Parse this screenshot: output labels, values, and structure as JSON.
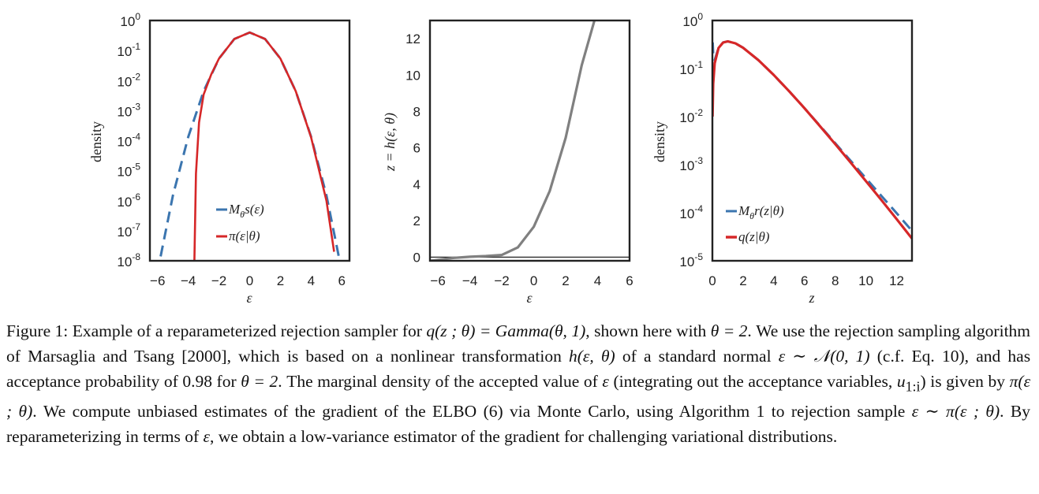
{
  "chart_data": [
    {
      "type": "line",
      "xlabel": "ε",
      "ylabel": "density",
      "xticks": [
        "−6",
        "−4",
        "−2",
        "0",
        "2",
        "4",
        "6"
      ],
      "xlim": [
        -6.5,
        6.5
      ],
      "ylim": [
        1e-08,
        1
      ],
      "yscale": "log",
      "yticks": [
        {
          "base": "10",
          "exp": "0"
        },
        {
          "base": "10",
          "exp": "-1"
        },
        {
          "base": "10",
          "exp": "-2"
        },
        {
          "base": "10",
          "exp": "-3"
        },
        {
          "base": "10",
          "exp": "-4"
        },
        {
          "base": "10",
          "exp": "-5"
        },
        {
          "base": "10",
          "exp": "-6"
        },
        {
          "base": "10",
          "exp": "-7"
        },
        {
          "base": "10",
          "exp": "-8"
        }
      ],
      "legend_position": "lower-center",
      "series": [
        {
          "name": "M_θ s(ε)",
          "label": "M",
          "label_sub": "θ",
          "label_rest": "s(ε)",
          "style": "dashed",
          "color": "#3b75af",
          "x": [
            -5.8,
            -5,
            -4,
            -3,
            -2,
            -1,
            0,
            1,
            2,
            3,
            4,
            5,
            5.8
          ],
          "y": [
            1.4e-08,
            1.5e-06,
            0.000135,
            0.0044,
            0.054,
            0.242,
            0.399,
            0.242,
            0.054,
            0.0044,
            0.000135,
            1.5e-06,
            1.4e-08
          ]
        },
        {
          "name": "π(ε|θ)",
          "label": "π(ε|θ)",
          "style": "solid",
          "color": "#d62728",
          "x": [
            -3.6,
            -3.5,
            -3.3,
            -3,
            -2.5,
            -2,
            -1,
            0,
            1,
            2,
            3,
            4,
            5,
            5.5
          ],
          "y": [
            1e-08,
            8e-06,
            0.0004,
            0.0034,
            0.0162,
            0.054,
            0.242,
            0.399,
            0.242,
            0.054,
            0.0044,
            0.00013,
            1e-06,
            2e-08
          ]
        }
      ]
    },
    {
      "type": "line",
      "xlabel": "ε",
      "ylabel": "z = h(ε, θ)",
      "xticks": [
        "−6",
        "−4",
        "−2",
        "0",
        "2",
        "4",
        "6"
      ],
      "yticks": [
        "0",
        "2",
        "4",
        "6",
        "8",
        "10",
        "12"
      ],
      "xlim": [
        -6.5,
        6
      ],
      "ylim": [
        -0.2,
        13
      ],
      "hline": 0,
      "series": [
        {
          "name": "h",
          "style": "solid",
          "color": "#808080",
          "x": [
            -6.5,
            -5,
            -4,
            -3,
            -2,
            -1,
            0,
            1,
            2,
            3,
            3.8
          ],
          "y": [
            -0.2,
            -0.04,
            0.02,
            0.06,
            0.12,
            0.53,
            1.67,
            3.63,
            6.55,
            10.53,
            13.0
          ]
        }
      ]
    },
    {
      "type": "line",
      "xlabel": "z",
      "ylabel": "density",
      "xticks": [
        "0",
        "2",
        "4",
        "6",
        "8",
        "10",
        "12"
      ],
      "xlim": [
        0,
        13
      ],
      "ylim": [
        1e-05,
        1
      ],
      "yscale": "log",
      "yticks": [
        {
          "base": "10",
          "exp": "0"
        },
        {
          "base": "10",
          "exp": "-1"
        },
        {
          "base": "10",
          "exp": "-2"
        },
        {
          "base": "10",
          "exp": "-3"
        },
        {
          "base": "10",
          "exp": "-4"
        },
        {
          "base": "10",
          "exp": "-5"
        }
      ],
      "legend_position": "lower-center",
      "series": [
        {
          "name": "M_θ r(z|θ)",
          "label": "M",
          "label_sub": "θ",
          "label_rest": "r(z|θ)",
          "style": "dashed",
          "color": "#3b75af",
          "x": [
            0.02,
            0.05,
            0.15,
            0.4,
            0.7,
            1,
            1.5,
            2,
            3,
            4,
            5,
            6,
            7,
            8,
            9,
            10,
            11,
            12,
            13
          ],
          "y": [
            0.35,
            0.21,
            0.15,
            0.27,
            0.35,
            0.368,
            0.335,
            0.271,
            0.149,
            0.073,
            0.0337,
            0.0149,
            0.0065,
            0.0028,
            0.00121,
            0.00052,
            0.000225,
            9.8e-05,
            4.2e-05
          ]
        },
        {
          "name": "q(z|θ)",
          "label": "q(z|θ)",
          "style": "solid",
          "color": "#d62728",
          "x": [
            0.01,
            0.05,
            0.15,
            0.4,
            0.7,
            1,
            1.5,
            2,
            3,
            4,
            5,
            6,
            7,
            8,
            9,
            10,
            11,
            12,
            13
          ],
          "y": [
            0.01,
            0.048,
            0.129,
            0.268,
            0.348,
            0.368,
            0.335,
            0.271,
            0.149,
            0.0733,
            0.0337,
            0.0149,
            0.00638,
            0.00268,
            0.00111,
            0.000454,
            0.000184,
            7.4e-05,
            2.9e-05
          ]
        }
      ]
    }
  ],
  "caption": {
    "label": "Figure 1:",
    "sentences": [
      "Example of a reparameterized rejection sampler for",
      "q(z ; θ) = Gamma(θ, 1)",
      ", shown here with",
      "θ = 2",
      ". We use the rejection sampling algorithm of Marsaglia and Tsang [2000], which is based on a nonlinear transformation",
      "h(ε, θ)",
      "of a standard normal",
      "ε ∼ 𝒩(0, 1)",
      "(c.f. Eq. 10), and has acceptance probability of 0.98 for",
      "θ = 2",
      ". The marginal density of the accepted value of",
      "ε",
      "(integrating out the acceptance variables,",
      "u",
      "1:i",
      ") is given by",
      "π(ε ; θ)",
      ". We compute unbiased estimates of the gradient of the",
      "ELBO",
      "(6) via Monte Carlo, using Algorithm 1 to rejection sample",
      "ε ∼ π(ε ; θ)",
      ". By reparameterizing in terms of",
      "ε",
      ", we obtain a low-variance estimator of the gradient for challenging variational distributions."
    ]
  }
}
